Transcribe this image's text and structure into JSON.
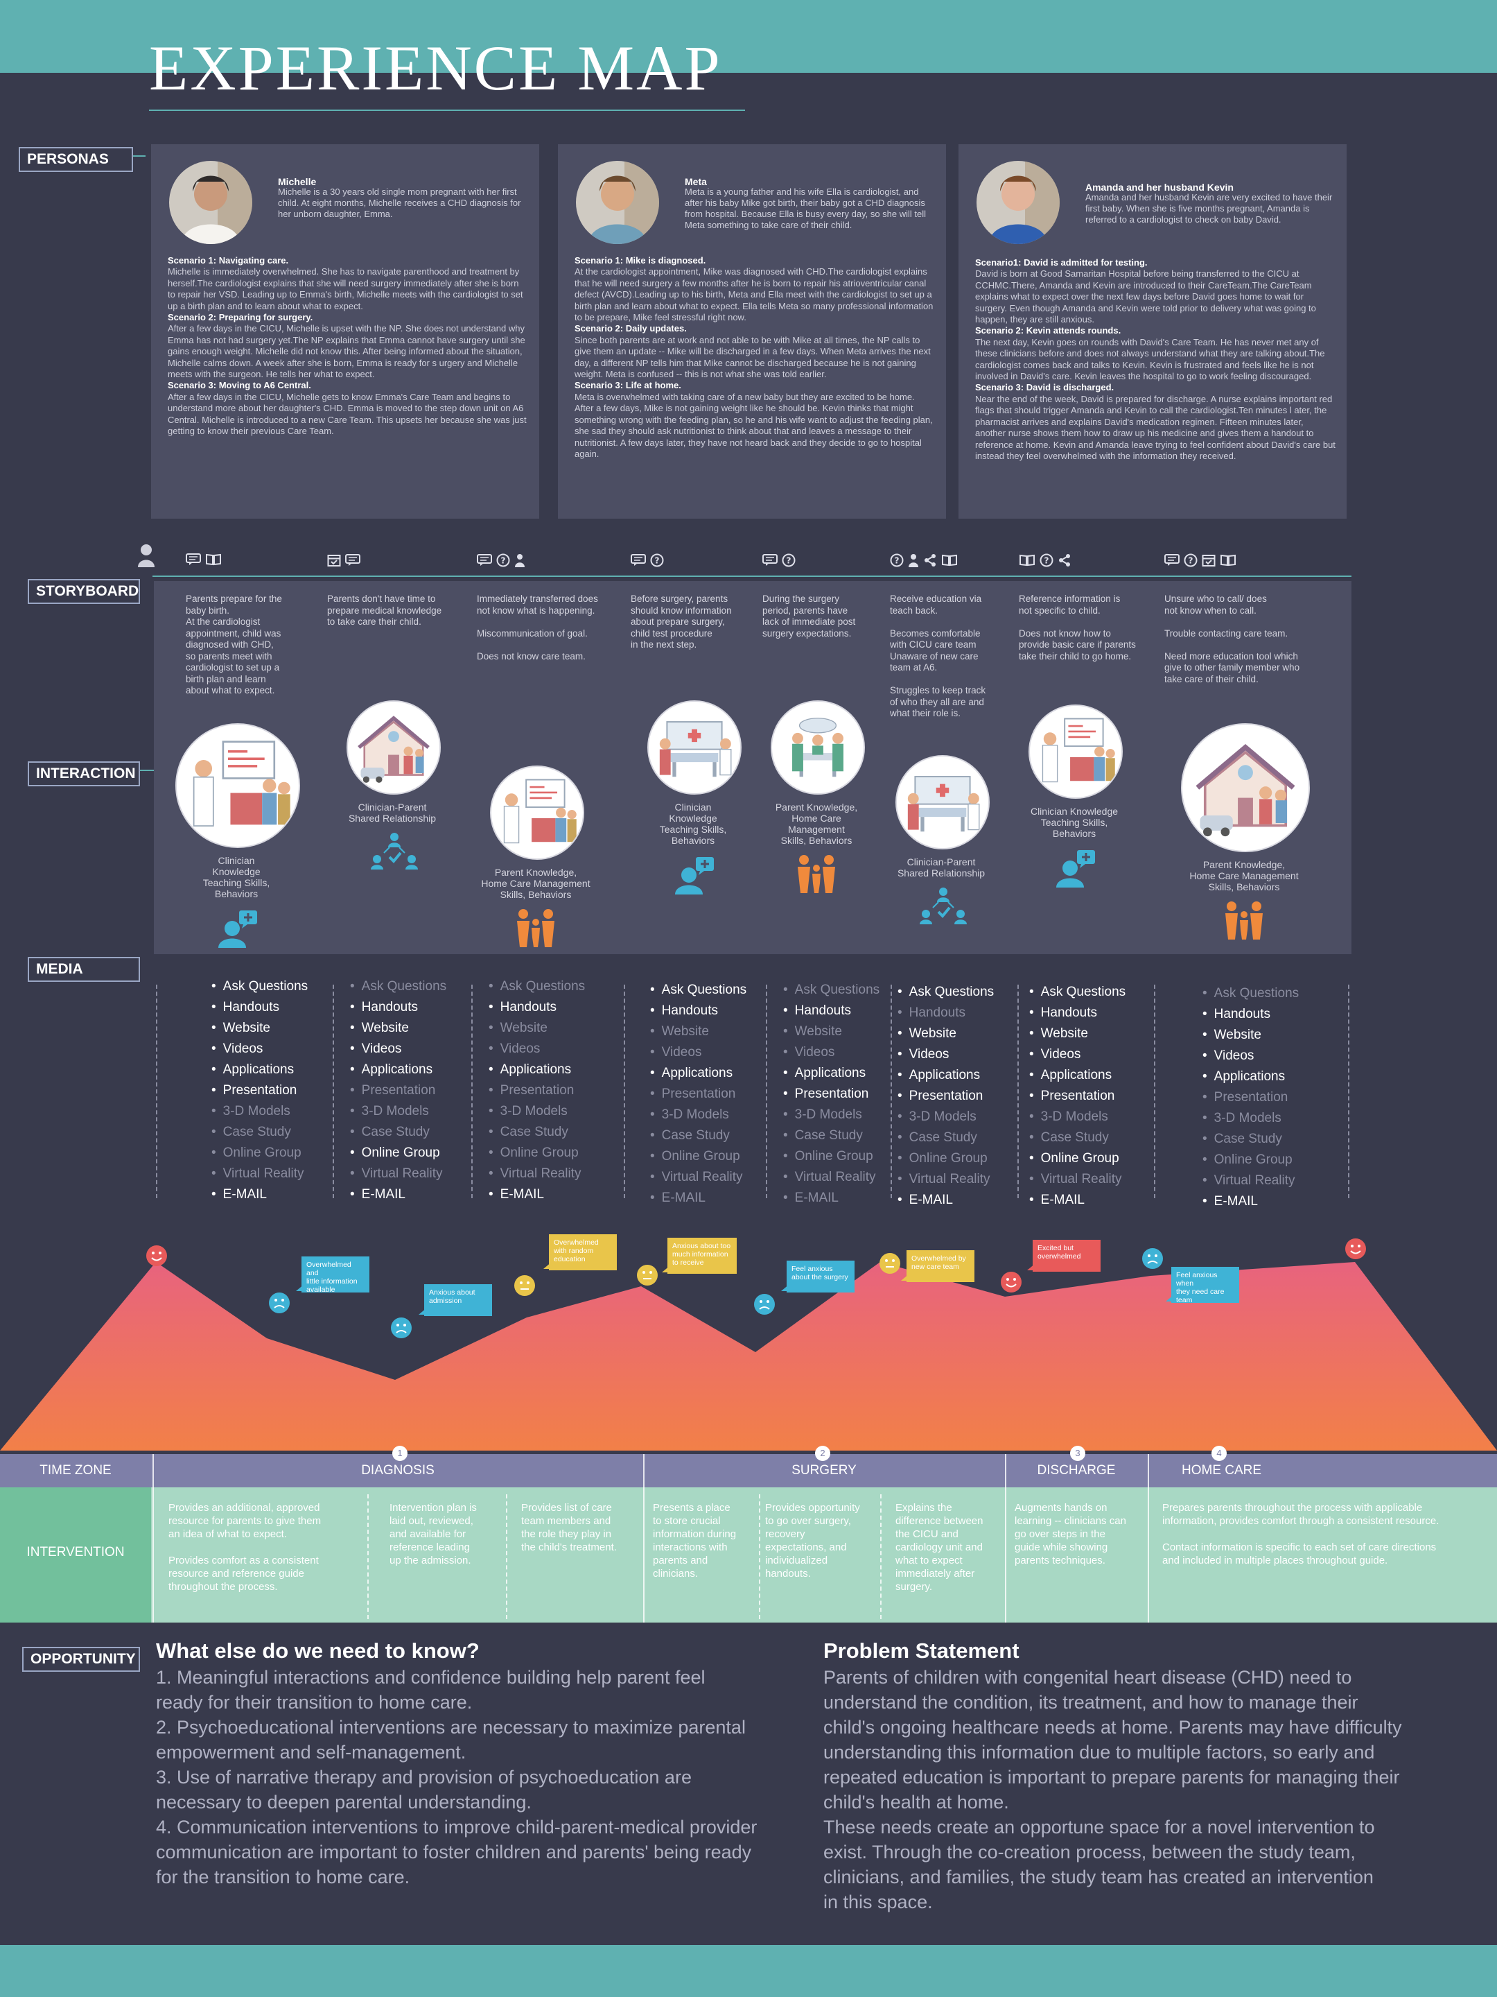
{
  "title": "EXPERIENCE MAP",
  "sections": {
    "personas": "PERSONAS",
    "storyboard": "STORYBOARD",
    "interaction": "INTERACTION",
    "media": "MEDIA",
    "opportunity": "OPPORTUNITY"
  },
  "personas": [
    {
      "name": "Michelle",
      "description": "Michelle is a 30 years old single mom pregnant with her first child. At eight months, Michelle receives a CHD diagnosis for her unborn daughter, Emma.",
      "scenarios": [
        {
          "heading": "Scenario 1: Navigating care.",
          "text": "Michelle is immediately overwhelmed. She has to navigate parenthood and treatment by herself.The cardiologist explains that she will need surgery immediately after she is born to repair her VSD. Leading up to Emma's birth, Michelle meets with the cardiologist to set up a birth plan and to learn about what to expect."
        },
        {
          "heading": "Scenario 2: Preparing for surgery.",
          "text": "After a few days in the CICU, Michelle is upset with the NP. She does not understand why Emma has not had surgery yet.The NP explains that Emma cannot have surgery until she gains enough weight. Michelle did not know this. After being informed about the situation, Michelle calms down. A week after she is born, Emma is ready for s urgery and Michelle meets with the surgeon. He tells her what to expect."
        },
        {
          "heading": "Scenario 3: Moving to A6 Central.",
          "text": "After a few days in the CICU, Michelle gets to know Emma's Care Team and begins to understand more about her daughter's CHD. Emma is moved to the step down unit on A6 Central. Michelle is introduced to a new Care Team. This upsets her because she was just getting to know their previous Care Team."
        }
      ]
    },
    {
      "name": "Meta",
      "description": "Meta is a young father and his wife Ella is cardiologist, and after his baby Mike got birth, their baby got a CHD diagnosis from hospital. Because Ella is busy every day, so she will tell Meta something to take care of their child.",
      "scenarios": [
        {
          "heading": "Scenario 1: Mike is diagnosed.",
          "text": "At the cardiologist appointment, Mike was diagnosed with CHD.The cardiologist explains that he will need surgery a few months after he is born to repair his atrioventricular canal defect (AVCD).Leading up to his birth, Meta and Ella meet with the cardiologist to set up a birth plan and learn about what to expect. Ella tells Meta so many professional information to be prepare, Mike feel stressful right now."
        },
        {
          "heading": "Scenario 2: Daily updates.",
          "text": "Since both parents are at work and not able to be with Mike at all times, the NP calls to give them an update -- Mike will be discharged in a few days. When Meta arrives the next day, a different NP tells him that Mike cannot be discharged because he is not gaining weight. Meta is confused -- this is not what she was told earlier."
        },
        {
          "heading": "Scenario 3: Life at home.",
          "text": "Meta is overwhelmed with taking care of a new baby but they are excited to be home. After a few days, Mike is not gaining weight like he should be. Kevin thinks that might something wrong with the feeding plan, so he and his wife want to adjust the feeding plan, she sad they should ask nutritionist to think about that and leaves a message to their nutritionist. A few days later, they have not heard back and they decide to go to hospital again."
        }
      ]
    },
    {
      "name": "Amanda and her husband Kevin",
      "description": "Amanda and her husband Kevin are very excited to have their first baby. When she is five months pregnant, Amanda is referred to a cardiologist to check on baby David.",
      "scenarios": [
        {
          "heading": "Scenario1: David is admitted for testing.",
          "text": "David is born at Good Samaritan Hospital before being transferred to the CICU at CCHMC.There, Amanda and Kevin are introduced to their CareTeam.The CareTeam explains what to expect over the next few days before David goes home to wait for surgery. Even though Amanda and Kevin were told prior to delivery what was going to happen, they are still anxious."
        },
        {
          "heading": "Scenario 2: Kevin attends rounds.",
          "text": "The next day, Kevin goes on rounds with David's Care Team. He has never met any of these clinicians before and does not always understand what they are talking about.The cardiologist comes back and talks to Kevin. Kevin is frustrated and feels like he is not involved in David's care. Kevin leaves the hospital to go to work feeling discouraged."
        },
        {
          "heading": "Scenario 3: David is discharged.",
          "text": "Near the end of the week, David is prepared for discharge. A nurse explains important red flags that should trigger Amanda and Kevin to call the cardiologist.Ten minutes l ater, the pharmacist arrives and explains David's medication regimen. Fifteen minutes later, another nurse shows them how to draw up his medicine and gives them a handout to reference at home. Kevin and Amanda leave trying to feel confident about David's care but instead they feel overwhelmed with the information they received."
        }
      ]
    }
  ],
  "storyboard": [
    {
      "icons": [
        "chat-icon",
        "book-icon"
      ],
      "text": "Parents prepare for the\nbaby birth.\nAt the cardiologist\nappointment, child was\ndiagnosed with CHD,\nso parents meet with\ncardiologist to set up a\nbirth plan and learn\nabout what to expect.",
      "interaction": "Clinician\nKnowledge\nTeaching Skills,\nBehaviors",
      "itype": "knowledge"
    },
    {
      "icons": [
        "calendar-icon",
        "chat-icon"
      ],
      "text": "Parents don't have time to\nprepare medical knowledge\nto take care their child.",
      "interaction": "Clinician-Parent\nShared Relationship",
      "itype": "relationship"
    },
    {
      "icons": [
        "chat-icon",
        "question-icon",
        "person-icon"
      ],
      "text": "Immediately transferred does\nnot know what is happening.\n\nMiscommunication of goal.\n\nDoes not know care team.",
      "interaction": "Parent Knowledge,\nHome Care Management\nSkills, Behaviors",
      "itype": "family"
    },
    {
      "icons": [
        "chat-icon",
        "question-icon"
      ],
      "text": "Before surgery, parents\nshould know information\nabout prepare surgery,\nchild test procedure\nin the next step.",
      "interaction": "Clinician\nKnowledge\nTeaching Skills,\nBehaviors",
      "itype": "knowledge"
    },
    {
      "icons": [
        "chat-icon",
        "question-icon"
      ],
      "text": "During the surgery\nperiod, parents have\nlack of immediate post\nsurgery expectations.",
      "interaction": "Parent Knowledge,\nHome Care\nManagement\nSkills, Behaviors",
      "itype": "family"
    },
    {
      "icons": [
        "question-icon",
        "person-icon",
        "share-icon",
        "book-icon"
      ],
      "text": "Receive education via\nteach back.\n\nBecomes comfortable\nwith CICU care team\nUnaware of new care\nteam at A6.\n\nStruggles to keep track\nof who they all are and\nwhat their role is.",
      "interaction": "Clinician-Parent\nShared Relationship",
      "itype": "relationship"
    },
    {
      "icons": [
        "book-icon",
        "question-icon",
        "share-icon"
      ],
      "text": "Reference information is\nnot specific to child.\n\nDoes not know how to\nprovide basic care if parents\ntake their child to go home.",
      "interaction": "Clinician Knowledge\nTeaching Skills,\nBehaviors",
      "itype": "knowledge"
    },
    {
      "icons": [
        "chat-icon",
        "question-icon",
        "calendar-icon",
        "book-icon"
      ],
      "text": "Unsure who to call/ does\nnot know when to call.\n\nTrouble contacting care team.\n\nNeed more education tool which\ngive to other family member who\ntake care of their child.",
      "interaction": "Parent Knowledge,\nHome Care Management\nSkills, Behaviors",
      "itype": "family"
    }
  ],
  "media_items": [
    "Ask Questions",
    "Handouts",
    "Website",
    "Videos",
    "Applications",
    "Presentation",
    "3-D Models",
    "Case Study",
    "Online Group",
    "Virtual Reality",
    "E-MAIL"
  ],
  "media_active": [
    [
      1,
      1,
      1,
      1,
      1,
      1,
      0,
      0,
      0,
      0,
      1
    ],
    [
      0,
      1,
      1,
      1,
      1,
      0,
      0,
      0,
      1,
      0,
      1
    ],
    [
      0,
      1,
      0,
      0,
      1,
      0,
      0,
      0,
      0,
      0,
      1
    ],
    [
      1,
      1,
      0,
      0,
      1,
      0,
      0,
      0,
      0,
      0,
      0
    ],
    [
      0,
      1,
      0,
      0,
      1,
      1,
      0,
      0,
      0,
      0,
      0
    ],
    [
      1,
      0,
      1,
      1,
      1,
      1,
      0,
      0,
      0,
      0,
      1
    ],
    [
      1,
      1,
      1,
      1,
      1,
      1,
      0,
      0,
      1,
      0,
      1
    ],
    [
      0,
      1,
      1,
      1,
      1,
      0,
      0,
      0,
      0,
      0,
      1
    ]
  ],
  "emotions": [
    {
      "text": "Overwhelmed and\nlittle information\navailable",
      "color": "#3fb3d6"
    },
    {
      "text": "Anxious about\nadmission",
      "color": "#3fb3d6"
    },
    {
      "text": "Overwhelmed\nwith random\neducation",
      "color": "#e9c54a"
    },
    {
      "text": "Anxious about too\nmuch information\nto receive",
      "color": "#e9c54a"
    },
    {
      "text": "Feel anxious\nabout the surgery",
      "color": "#3fb3d6"
    },
    {
      "text": "Overwhelmed by\nnew care team",
      "color": "#e9c54a"
    },
    {
      "text": "Excited but\noverwhelmed",
      "color": "#e85a5a"
    },
    {
      "text": "Feel anxious when\nthey need care\nteam",
      "color": "#3fb3d6"
    }
  ],
  "journey": {
    "time_zone_label": "TIME ZONE",
    "intervention_label": "INTERVENTION",
    "phases": [
      {
        "num": "1",
        "label": "DIAGNOSIS"
      },
      {
        "num": "2",
        "label": "SURGERY"
      },
      {
        "num": "3",
        "label": "DISCHARGE"
      },
      {
        "num": "4",
        "label": "HOME CARE"
      }
    ],
    "interventions": [
      "Provides an additional, approved\nresource for parents to give them\nan idea of what to expect.\n\nProvides comfort as a consistent\nresource and reference guide\nthroughout the process.",
      "Intervention plan is\nlaid out, reviewed,\nand available for\nreference leading\nup the admission.",
      "Provides list of care\nteam members and\nthe role they play in\nthe child's treatment.",
      "Presents a place\nto store crucial\ninformation during\ninteractions with\nparents and\nclinicians.",
      "Provides opportunity\nto go over surgery,\nrecovery\nexpectations, and\nindividualized\nhandouts.",
      "Explains the\ndifference between\nthe CICU and\ncardiology unit and\nwhat to expect\nimmediately after\nsurgery.",
      "Augments hands on\nlearning -- clinicians can\ngo over steps in the\nguide while showing\nparents techniques.",
      "Prepares parents throughout the process with applicable\ninformation, provides comfort through a consistent resource.\n\nContact information is specific to each set of care directions\nand included in multiple places throughout guide."
    ]
  },
  "opportunity": {
    "left_heading": "What else do we need to know?",
    "left_text": "1. Meaningful interactions and confidence building help parent feel\nready for their transition to home care.\n2. Psychoeducational interventions are necessary to maximize parental\nempowerment and self-management.\n3. Use of narrative therapy and provision of psychoeducation are\nnecessary to deepen parental understanding.\n4. Communication interventions to improve child-parent-medical provider\ncommunication are important to foster children and parents' being ready\nfor the transition to home care.",
    "right_heading": "Problem Statement",
    "right_text": "Parents of children with congenital heart disease (CHD) need to\nunderstand the condition, its treatment, and how to manage their\nchild's ongoing healthcare needs at home. Parents may have difficulty\nunderstanding this information due to multiple factors, so early and\nrepeated education is important to prepare parents for managing their\nchild's health at home.\nThese needs create an opportune space for a novel intervention to\nexist. Through the co-creation process, between the study team,\nclinicians, and families, the study team has created an intervention\nin this space."
  },
  "colors": {
    "background": "#383a4c",
    "accent_teal": "#5fb1b1",
    "panel": "#4c4e63",
    "time_zone_bar": "#7e7fa8",
    "intervention_bar": "#a8d8c4",
    "curve_pink": "#e8637e",
    "curve_orange": "#f07a4a"
  }
}
